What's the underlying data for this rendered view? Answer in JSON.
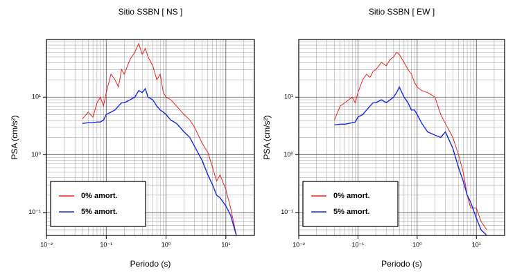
{
  "chart_data": [
    {
      "type": "line",
      "title": "Sitio SSBN [ NS ]",
      "x_label": "Periodo (s)",
      "y_label": "PSA (cm/s²)",
      "log_x": true,
      "log_y": true,
      "grid": true,
      "minor_grid": true,
      "legend": "lower left",
      "xlim": [
        0.01,
        30
      ],
      "ylim": [
        0.04,
        100
      ],
      "xticks": [
        {
          "value": 0.01,
          "label": "10⁻²"
        },
        {
          "value": 0.1,
          "label": "10⁻¹"
        },
        {
          "value": 1,
          "label": "10⁰"
        },
        {
          "value": 10,
          "label": "10¹"
        }
      ],
      "yticks": [
        {
          "value": 0.1,
          "label": "10⁻¹"
        },
        {
          "value": 1,
          "label": "10⁰"
        },
        {
          "value": 10,
          "label": "10¹"
        }
      ],
      "x": [
        0.04,
        0.05,
        0.06,
        0.07,
        0.08,
        0.09,
        0.1,
        0.12,
        0.14,
        0.16,
        0.18,
        0.2,
        0.25,
        0.3,
        0.35,
        0.4,
        0.45,
        0.5,
        0.6,
        0.7,
        0.8,
        0.9,
        1,
        1.2,
        1.5,
        2,
        2.5,
        3,
        4,
        5,
        6,
        7,
        8,
        10,
        12,
        15
      ],
      "series": [
        {
          "name": "0% amort.",
          "color": "#e8231f",
          "values": [
            4.2,
            5.5,
            4.5,
            8,
            10,
            7,
            12,
            25,
            20,
            15,
            30,
            25,
            45,
            60,
            85,
            55,
            70,
            50,
            35,
            20,
            25,
            12,
            10,
            9,
            7,
            5,
            4,
            3,
            1.6,
            1.1,
            0.6,
            0.35,
            0.45,
            0.25,
            0.12,
            0.04
          ]
        },
        {
          "name": "5% amort.",
          "color": "#1428e0",
          "values": [
            3.5,
            3.6,
            3.6,
            3.7,
            3.7,
            4,
            5,
            5.5,
            6,
            7,
            8,
            8,
            9,
            10,
            13,
            12,
            14,
            10,
            9,
            7,
            6,
            5.5,
            5,
            4,
            3.5,
            2.5,
            2,
            1.4,
            0.8,
            0.45,
            0.3,
            0.2,
            0.18,
            0.13,
            0.09,
            0.04
          ]
        }
      ]
    },
    {
      "type": "line",
      "title": "Sitio SSBN [ EW ]",
      "x_label": "Periodo (s)",
      "y_label": "PSA (cm/s²)",
      "log_x": true,
      "log_y": true,
      "grid": true,
      "minor_grid": true,
      "legend": "lower left",
      "xlim": [
        0.01,
        30
      ],
      "ylim": [
        0.04,
        100
      ],
      "xticks": [
        {
          "value": 0.01,
          "label": "10⁻²"
        },
        {
          "value": 0.1,
          "label": "10⁻¹"
        },
        {
          "value": 1,
          "label": "10⁰"
        },
        {
          "value": 10,
          "label": "10¹"
        }
      ],
      "yticks": [
        {
          "value": 0.1,
          "label": "10⁻¹"
        },
        {
          "value": 1,
          "label": "10⁰"
        },
        {
          "value": 10,
          "label": "10¹"
        }
      ],
      "x": [
        0.04,
        0.05,
        0.06,
        0.07,
        0.08,
        0.09,
        0.1,
        0.12,
        0.14,
        0.16,
        0.18,
        0.2,
        0.25,
        0.3,
        0.35,
        0.4,
        0.45,
        0.5,
        0.6,
        0.7,
        0.8,
        0.9,
        1,
        1.2,
        1.5,
        2,
        2.5,
        3,
        4,
        5,
        6,
        7,
        8,
        10,
        12,
        15
      ],
      "series": [
        {
          "name": "0% amort.",
          "color": "#e8231f",
          "values": [
            4,
            7,
            8,
            9,
            10,
            8,
            12,
            20,
            25,
            22,
            28,
            30,
            40,
            35,
            45,
            50,
            60,
            55,
            40,
            30,
            25,
            18,
            15,
            13,
            12,
            10,
            5,
            3.5,
            2,
            1,
            0.5,
            0.2,
            0.12,
            0.12,
            0.07,
            0.05
          ]
        },
        {
          "name": "5% amort.",
          "color": "#1428e0",
          "values": [
            3.3,
            3.4,
            3.4,
            3.5,
            3.6,
            3.7,
            4.5,
            5,
            6,
            7,
            8,
            8,
            9,
            8,
            9,
            10,
            12,
            15,
            10,
            8,
            6,
            6,
            5,
            3.5,
            2.5,
            2.2,
            2,
            2.5,
            1.3,
            0.6,
            0.35,
            0.2,
            0.15,
            0.08,
            0.05,
            0.04
          ]
        }
      ]
    }
  ]
}
